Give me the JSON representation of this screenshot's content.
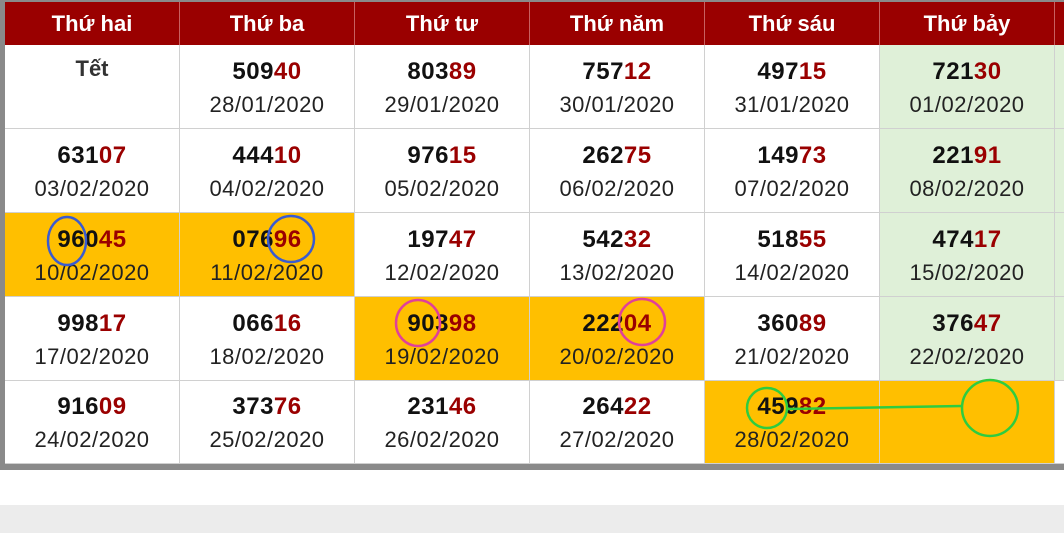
{
  "headers": [
    "Thứ hai",
    "Thứ ba",
    "Thứ tư",
    "Thứ năm",
    "Thứ sáu",
    "Thứ bảy"
  ],
  "rows": [
    [
      {
        "tet": "Tết"
      },
      {
        "head": "509",
        "tail": "40",
        "date": "28/01/2020"
      },
      {
        "head": "803",
        "tail": "89",
        "date": "29/01/2020"
      },
      {
        "head": "757",
        "tail": "12",
        "date": "30/01/2020"
      },
      {
        "head": "497",
        "tail": "15",
        "date": "31/01/2020"
      },
      {
        "head": "721",
        "tail": "30",
        "date": "01/02/2020"
      }
    ],
    [
      {
        "head": "631",
        "tail": "07",
        "date": "03/02/2020"
      },
      {
        "head": "444",
        "tail": "10",
        "date": "04/02/2020"
      },
      {
        "head": "976",
        "tail": "15",
        "date": "05/02/2020"
      },
      {
        "head": "262",
        "tail": "75",
        "date": "06/02/2020"
      },
      {
        "head": "149",
        "tail": "73",
        "date": "07/02/2020"
      },
      {
        "head": "221",
        "tail": "91",
        "date": "08/02/2020"
      }
    ],
    [
      {
        "head": "960",
        "tail": "45",
        "date": "10/02/2020"
      },
      {
        "head": "076",
        "tail": "96",
        "date": "11/02/2020"
      },
      {
        "head": "197",
        "tail": "47",
        "date": "12/02/2020"
      },
      {
        "head": "542",
        "tail": "32",
        "date": "13/02/2020"
      },
      {
        "head": "518",
        "tail": "55",
        "date": "14/02/2020"
      },
      {
        "head": "474",
        "tail": "17",
        "date": "15/02/2020"
      }
    ],
    [
      {
        "head": "998",
        "tail": "17",
        "date": "17/02/2020"
      },
      {
        "head": "066",
        "tail": "16",
        "date": "18/02/2020"
      },
      {
        "head": "903",
        "tail": "98",
        "date": "19/02/2020"
      },
      {
        "head": "222",
        "tail": "04",
        "date": "20/02/2020"
      },
      {
        "head": "360",
        "tail": "89",
        "date": "21/02/2020"
      },
      {
        "head": "376",
        "tail": "47",
        "date": "22/02/2020"
      }
    ],
    [
      {
        "head": "916",
        "tail": "09",
        "date": "24/02/2020"
      },
      {
        "head": "373",
        "tail": "76",
        "date": "25/02/2020"
      },
      {
        "head": "231",
        "tail": "46",
        "date": "26/02/2020"
      },
      {
        "head": "264",
        "tail": "22",
        "date": "27/02/2020"
      },
      {
        "head": "459",
        "tail": "82",
        "date": "28/02/2020"
      },
      {
        "head": "",
        "tail": "",
        "date": ""
      }
    ]
  ],
  "colors": {
    "header_bg": "#9a0000",
    "highlight": "#ffbf00",
    "saturday_bg": "#dff0d8",
    "tail_text": "#9a0000",
    "circle_blue": "#3a5bd0",
    "circle_pink": "#e0409a",
    "circle_green": "#2ecc40"
  }
}
